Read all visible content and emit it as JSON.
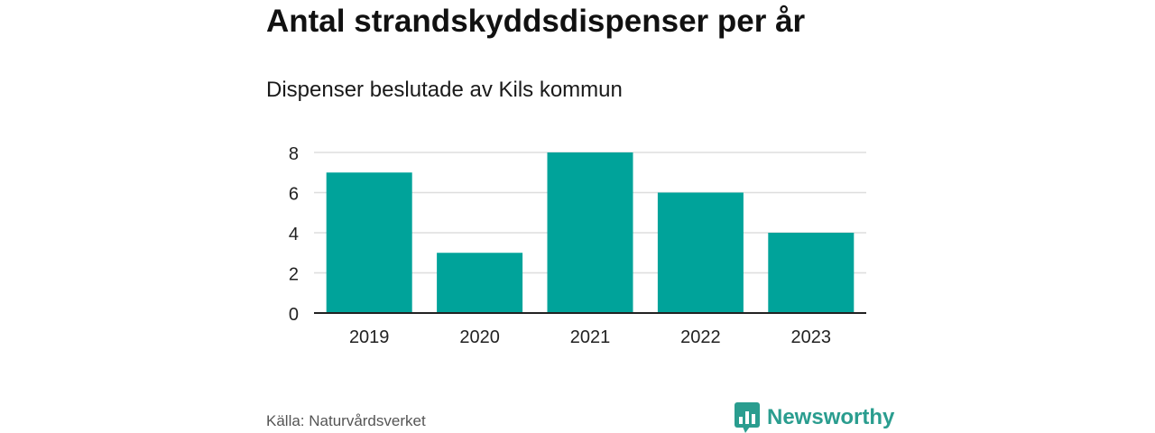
{
  "header": {
    "title": "Antal strandskyddsdispenser per år",
    "subtitle": "Dispenser beslutade av Kils kommun"
  },
  "footer": {
    "source": "Källa: Naturvårdsverket",
    "brand": "Newsworthy",
    "brand_icon": "bar-chart-speech-bubble-icon"
  },
  "colors": {
    "bar": "#00A39A",
    "grid": "#dddddd",
    "axis": "#222222",
    "brand": "#2a9d8f"
  },
  "chart_data": {
    "type": "bar",
    "categories": [
      "2019",
      "2020",
      "2021",
      "2022",
      "2023"
    ],
    "values": [
      7,
      3,
      8,
      6,
      4
    ],
    "title": "Antal strandskyddsdispenser per år",
    "subtitle": "Dispenser beslutade av Kils kommun",
    "xlabel": "",
    "ylabel": "",
    "ylim": [
      0,
      8
    ],
    "yticks": [
      0,
      2,
      4,
      6,
      8
    ],
    "grid": true,
    "legend": "none"
  }
}
